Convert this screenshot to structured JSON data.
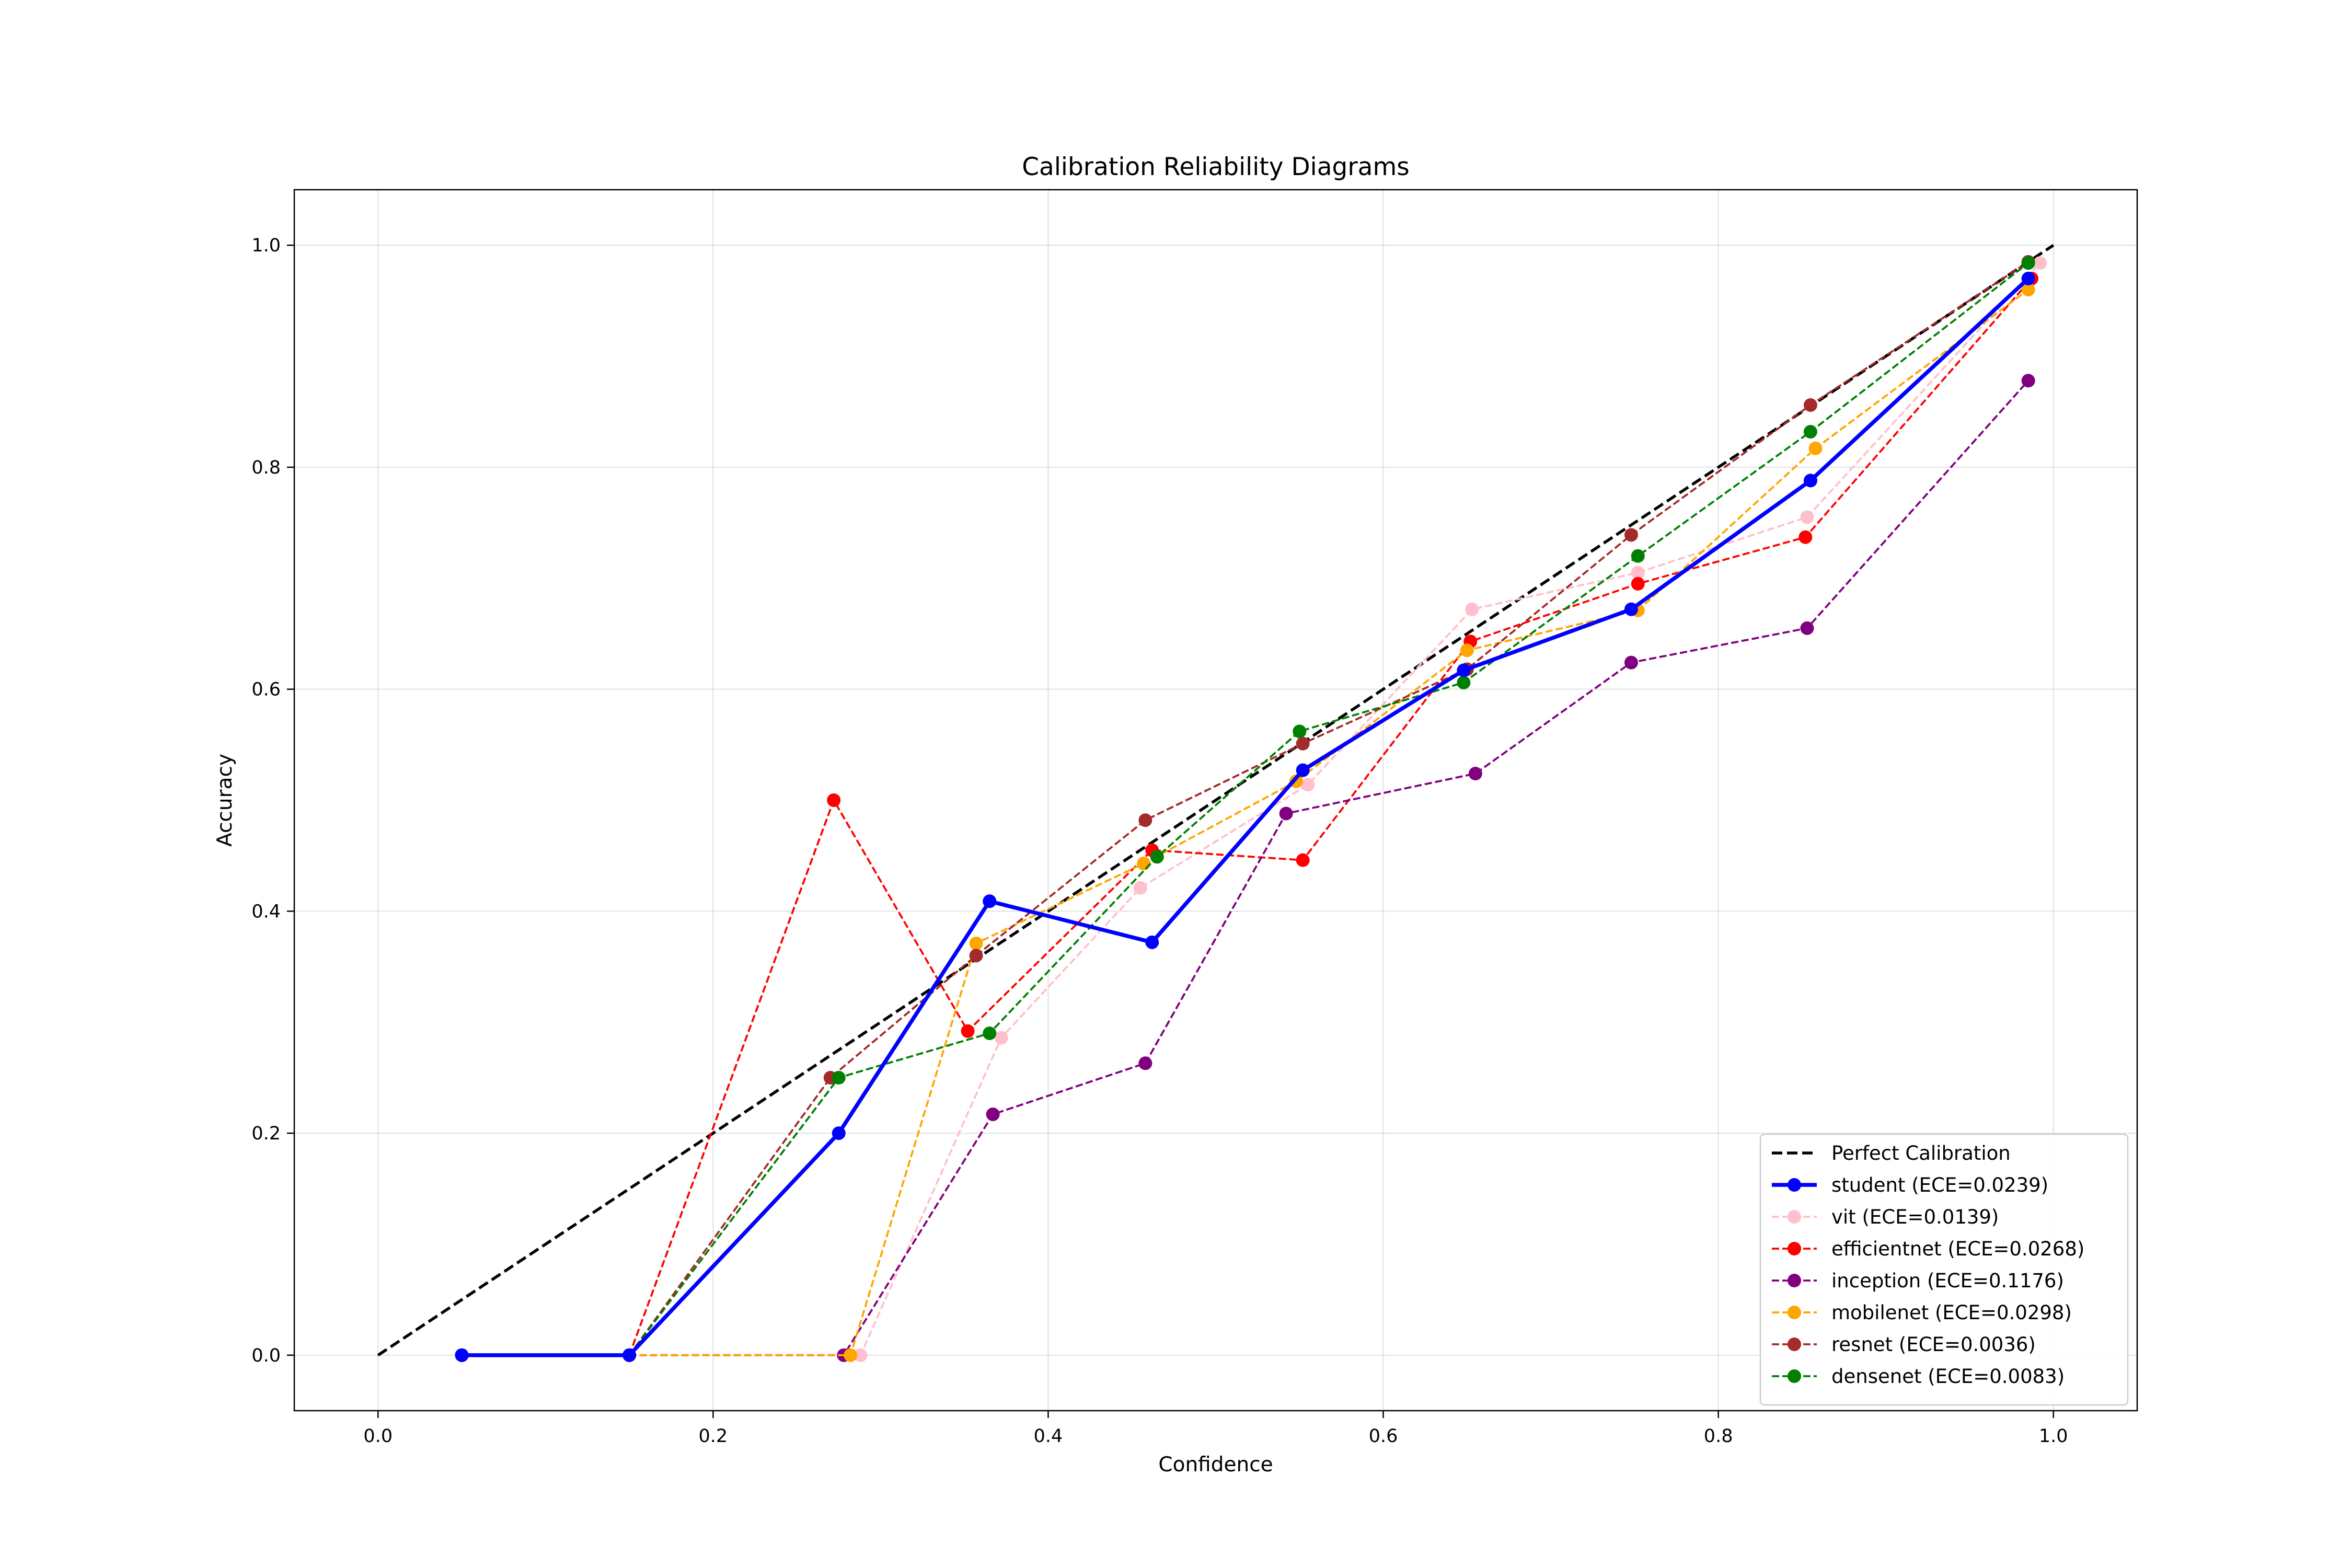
{
  "chart_data": {
    "type": "line",
    "title": "Calibration Reliability Diagrams",
    "xlabel": "Confidence",
    "ylabel": "Accuracy",
    "xlim": [
      -0.05,
      1.05
    ],
    "ylim": [
      -0.05,
      1.05
    ],
    "xticks": [
      0.0,
      0.2,
      0.4,
      0.6,
      0.8,
      1.0
    ],
    "yticks": [
      0.0,
      0.2,
      0.4,
      0.6,
      0.8,
      1.0
    ],
    "xtick_labels": [
      "0.0",
      "0.2",
      "0.4",
      "0.6",
      "0.8",
      "1.0"
    ],
    "ytick_labels": [
      "0.0",
      "0.2",
      "0.4",
      "0.6",
      "0.8",
      "1.0"
    ],
    "grid": true,
    "legend_position": "lower-right",
    "reference": {
      "name": "Perfect Calibration",
      "color": "#000000",
      "x": [
        0.0,
        1.0
      ],
      "y": [
        0.0,
        1.0
      ]
    },
    "series": [
      {
        "name": "student (ECE=0.0239)",
        "color": "#0000ff",
        "style": "solid",
        "x": [
          0.05,
          0.15,
          0.275,
          0.365,
          0.462,
          0.552,
          0.648,
          0.748,
          0.855,
          0.985
        ],
        "y": [
          0.0,
          0.0,
          0.2,
          0.409,
          0.372,
          0.527,
          0.617,
          0.672,
          0.788,
          0.97
        ]
      },
      {
        "name": "vit (ECE=0.0139)",
        "color": "#ffc0cb",
        "style": "dashed",
        "x": [
          0.05,
          0.15,
          0.288,
          0.372,
          0.455,
          0.555,
          0.653,
          0.752,
          0.853,
          0.992
        ],
        "y": [
          0.0,
          0.0,
          0.0,
          0.286,
          0.421,
          0.514,
          0.672,
          0.705,
          0.755,
          0.984
        ]
      },
      {
        "name": "efficientnet (ECE=0.0268)",
        "color": "#ff0000",
        "style": "dashed",
        "x": [
          0.05,
          0.15,
          0.272,
          0.352,
          0.462,
          0.552,
          0.652,
          0.752,
          0.852,
          0.987
        ],
        "y": [
          0.0,
          0.0,
          0.5,
          0.292,
          0.455,
          0.446,
          0.643,
          0.695,
          0.737,
          0.97
        ]
      },
      {
        "name": "inception (ECE=0.1176)",
        "color": "#800080",
        "style": "dashed",
        "x": [
          0.05,
          0.15,
          0.278,
          0.367,
          0.458,
          0.542,
          0.655,
          0.748,
          0.853,
          0.985
        ],
        "y": [
          0.0,
          0.0,
          0.0,
          0.217,
          0.263,
          0.488,
          0.524,
          0.624,
          0.655,
          0.878
        ]
      },
      {
        "name": "mobilenet (ECE=0.0298)",
        "color": "#ffa500",
        "style": "dashed",
        "x": [
          0.05,
          0.15,
          0.282,
          0.357,
          0.457,
          0.548,
          0.65,
          0.752,
          0.858,
          0.985
        ],
        "y": [
          0.0,
          0.0,
          0.0,
          0.371,
          0.443,
          0.517,
          0.635,
          0.671,
          0.817,
          0.96
        ]
      },
      {
        "name": "resnet (ECE=0.0036)",
        "color": "#a52a2a",
        "style": "dashed",
        "x": [
          0.05,
          0.15,
          0.27,
          0.357,
          0.458,
          0.552,
          0.65,
          0.748,
          0.855,
          0.985
        ],
        "y": [
          0.0,
          0.0,
          0.25,
          0.36,
          0.482,
          0.551,
          0.618,
          0.739,
          0.856,
          0.985
        ]
      },
      {
        "name": "densenet (ECE=0.0083)",
        "color": "#008000",
        "style": "dashed",
        "x": [
          0.05,
          0.15,
          0.275,
          0.365,
          0.465,
          0.55,
          0.648,
          0.752,
          0.855,
          0.985
        ],
        "y": [
          0.0,
          0.0,
          0.25,
          0.29,
          0.449,
          0.562,
          0.606,
          0.72,
          0.832,
          0.984
        ]
      }
    ]
  }
}
